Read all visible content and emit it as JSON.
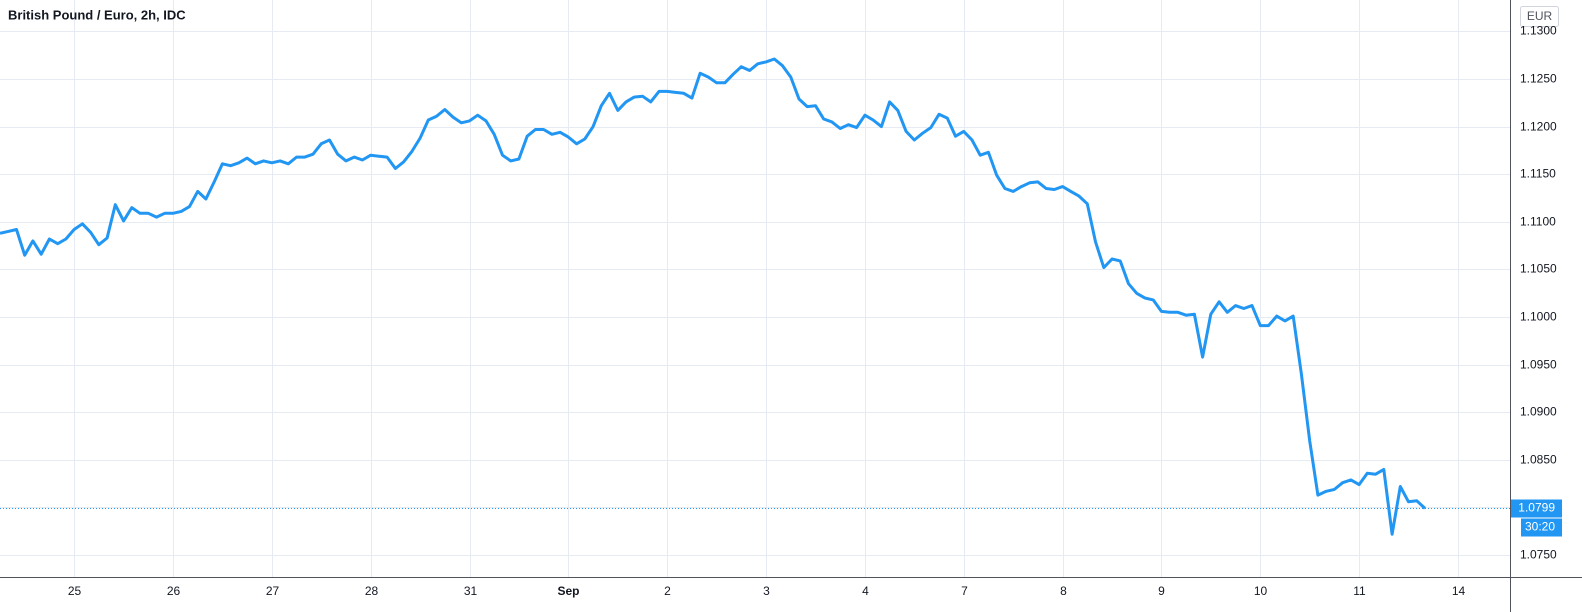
{
  "chart_data": {
    "type": "line",
    "title": "British Pound / Euro, 2h, IDC",
    "currency": "EUR",
    "categories": [
      null,
      null,
      null,
      null,
      null,
      null,
      null,
      null,
      null,
      "25",
      null,
      null,
      null,
      null,
      null,
      null,
      null,
      null,
      null,
      null,
      null,
      "26",
      null,
      null,
      null,
      null,
      null,
      null,
      null,
      null,
      null,
      null,
      null,
      "27",
      null,
      null,
      null,
      null,
      null,
      null,
      null,
      null,
      null,
      null,
      null,
      "28",
      null,
      null,
      null,
      null,
      null,
      null,
      null,
      null,
      null,
      null,
      null,
      "31",
      null,
      null,
      null,
      null,
      null,
      null,
      null,
      null,
      null,
      null,
      null,
      "Sep",
      null,
      null,
      null,
      null,
      null,
      null,
      null,
      null,
      null,
      null,
      null,
      "2",
      null,
      null,
      null,
      null,
      null,
      null,
      null,
      null,
      null,
      null,
      null,
      "3",
      null,
      null,
      null,
      null,
      null,
      null,
      null,
      null,
      null,
      null,
      null,
      "4",
      null,
      null,
      null,
      null,
      null,
      null,
      null,
      null,
      null,
      null,
      null,
      "7",
      null,
      null,
      null,
      null,
      null,
      null,
      null,
      null,
      null,
      null,
      null,
      "8",
      null,
      null,
      null,
      null,
      null,
      null,
      null,
      null,
      null,
      null,
      null,
      "9",
      null,
      null,
      null,
      null,
      null,
      null,
      null,
      null,
      null,
      null,
      null,
      "10",
      null,
      null,
      null,
      null,
      null,
      null,
      null,
      null,
      null,
      null,
      null,
      "11",
      null,
      null,
      null,
      null,
      null,
      null,
      null,
      null,
      null,
      null,
      null,
      "14"
    ],
    "series": [
      {
        "name": "GBP/EUR",
        "color": "#2196f3",
        "values": [
          1.1088,
          1.109,
          1.1092,
          1.1065,
          1.108,
          1.1066,
          1.1082,
          1.1077,
          1.1082,
          1.1092,
          1.1098,
          1.1089,
          1.1076,
          1.1083,
          1.1118,
          1.1101,
          1.1115,
          1.1109,
          1.1109,
          1.1105,
          1.1109,
          1.1109,
          1.1111,
          1.1116,
          1.1132,
          1.1124,
          1.1142,
          1.1161,
          1.1159,
          1.1162,
          1.1167,
          1.1161,
          1.1164,
          1.1162,
          1.1164,
          1.1161,
          1.1168,
          1.1168,
          1.1171,
          1.1182,
          1.1186,
          1.1171,
          1.1164,
          1.1168,
          1.1165,
          1.117,
          1.1169,
          1.1168,
          1.1156,
          1.1163,
          1.1174,
          1.1188,
          1.1207,
          1.1211,
          1.1218,
          1.121,
          1.1204,
          1.1206,
          1.1212,
          1.1206,
          1.1192,
          1.117,
          1.1164,
          1.1166,
          1.119,
          1.1197,
          1.1197,
          1.1192,
          1.1194,
          1.1189,
          1.1182,
          1.1187,
          1.12,
          1.1222,
          1.1235,
          1.1217,
          1.1226,
          1.1231,
          1.1232,
          1.1226,
          1.1237,
          1.1237,
          1.1236,
          1.1235,
          1.123,
          1.1256,
          1.1252,
          1.1246,
          1.1246,
          1.1255,
          1.1263,
          1.1259,
          1.1266,
          1.1268,
          1.1271,
          1.1264,
          1.1252,
          1.1229,
          1.1221,
          1.1222,
          1.1208,
          1.1205,
          1.1198,
          1.1202,
          1.1199,
          1.1212,
          1.1207,
          1.12,
          1.1226,
          1.1217,
          1.1195,
          1.1186,
          1.1193,
          1.1199,
          1.1213,
          1.1209,
          1.119,
          1.1195,
          1.1186,
          1.117,
          1.1173,
          1.1149,
          1.1135,
          1.1132,
          1.1137,
          1.1141,
          1.1142,
          1.1135,
          1.1134,
          1.1137,
          1.1132,
          1.1127,
          1.1119,
          1.1079,
          1.1052,
          1.1061,
          1.1059,
          1.1035,
          1.1025,
          1.102,
          1.1018,
          1.1006,
          1.1005,
          1.1005,
          1.1002,
          1.1003,
          1.0958,
          1.1003,
          1.1016,
          1.1005,
          1.1012,
          1.1009,
          1.1012,
          1.0991,
          1.0991,
          1.1001,
          1.0996,
          1.1001,
          1.094,
          1.087,
          1.0813,
          1.0817,
          1.0819,
          1.0826,
          1.0829,
          1.0824,
          1.0836,
          1.0835,
          1.084,
          1.0772,
          1.0822,
          1.0806,
          1.0807,
          1.0799,
          null,
          null,
          null,
          null
        ]
      }
    ],
    "last_price_label": "1.0799",
    "countdown": "30:20",
    "ylim": [
      1.0727,
      1.1333
    ],
    "yticks": [
      {
        "value": 1.075,
        "label": "1.0750"
      },
      {
        "value": 1.08,
        "label": "1.0800"
      },
      {
        "value": 1.085,
        "label": "1.0850"
      },
      {
        "value": 1.09,
        "label": "1.0900"
      },
      {
        "value": 1.095,
        "label": "1.0950"
      },
      {
        "value": 1.1,
        "label": "1.1000"
      },
      {
        "value": 1.105,
        "label": "1.1050"
      },
      {
        "value": 1.11,
        "label": "1.1100"
      },
      {
        "value": 1.115,
        "label": "1.1150"
      },
      {
        "value": 1.12,
        "label": "1.1200"
      },
      {
        "value": 1.125,
        "label": "1.1250"
      },
      {
        "value": 1.13,
        "label": "1.1300"
      }
    ],
    "grid": true
  }
}
